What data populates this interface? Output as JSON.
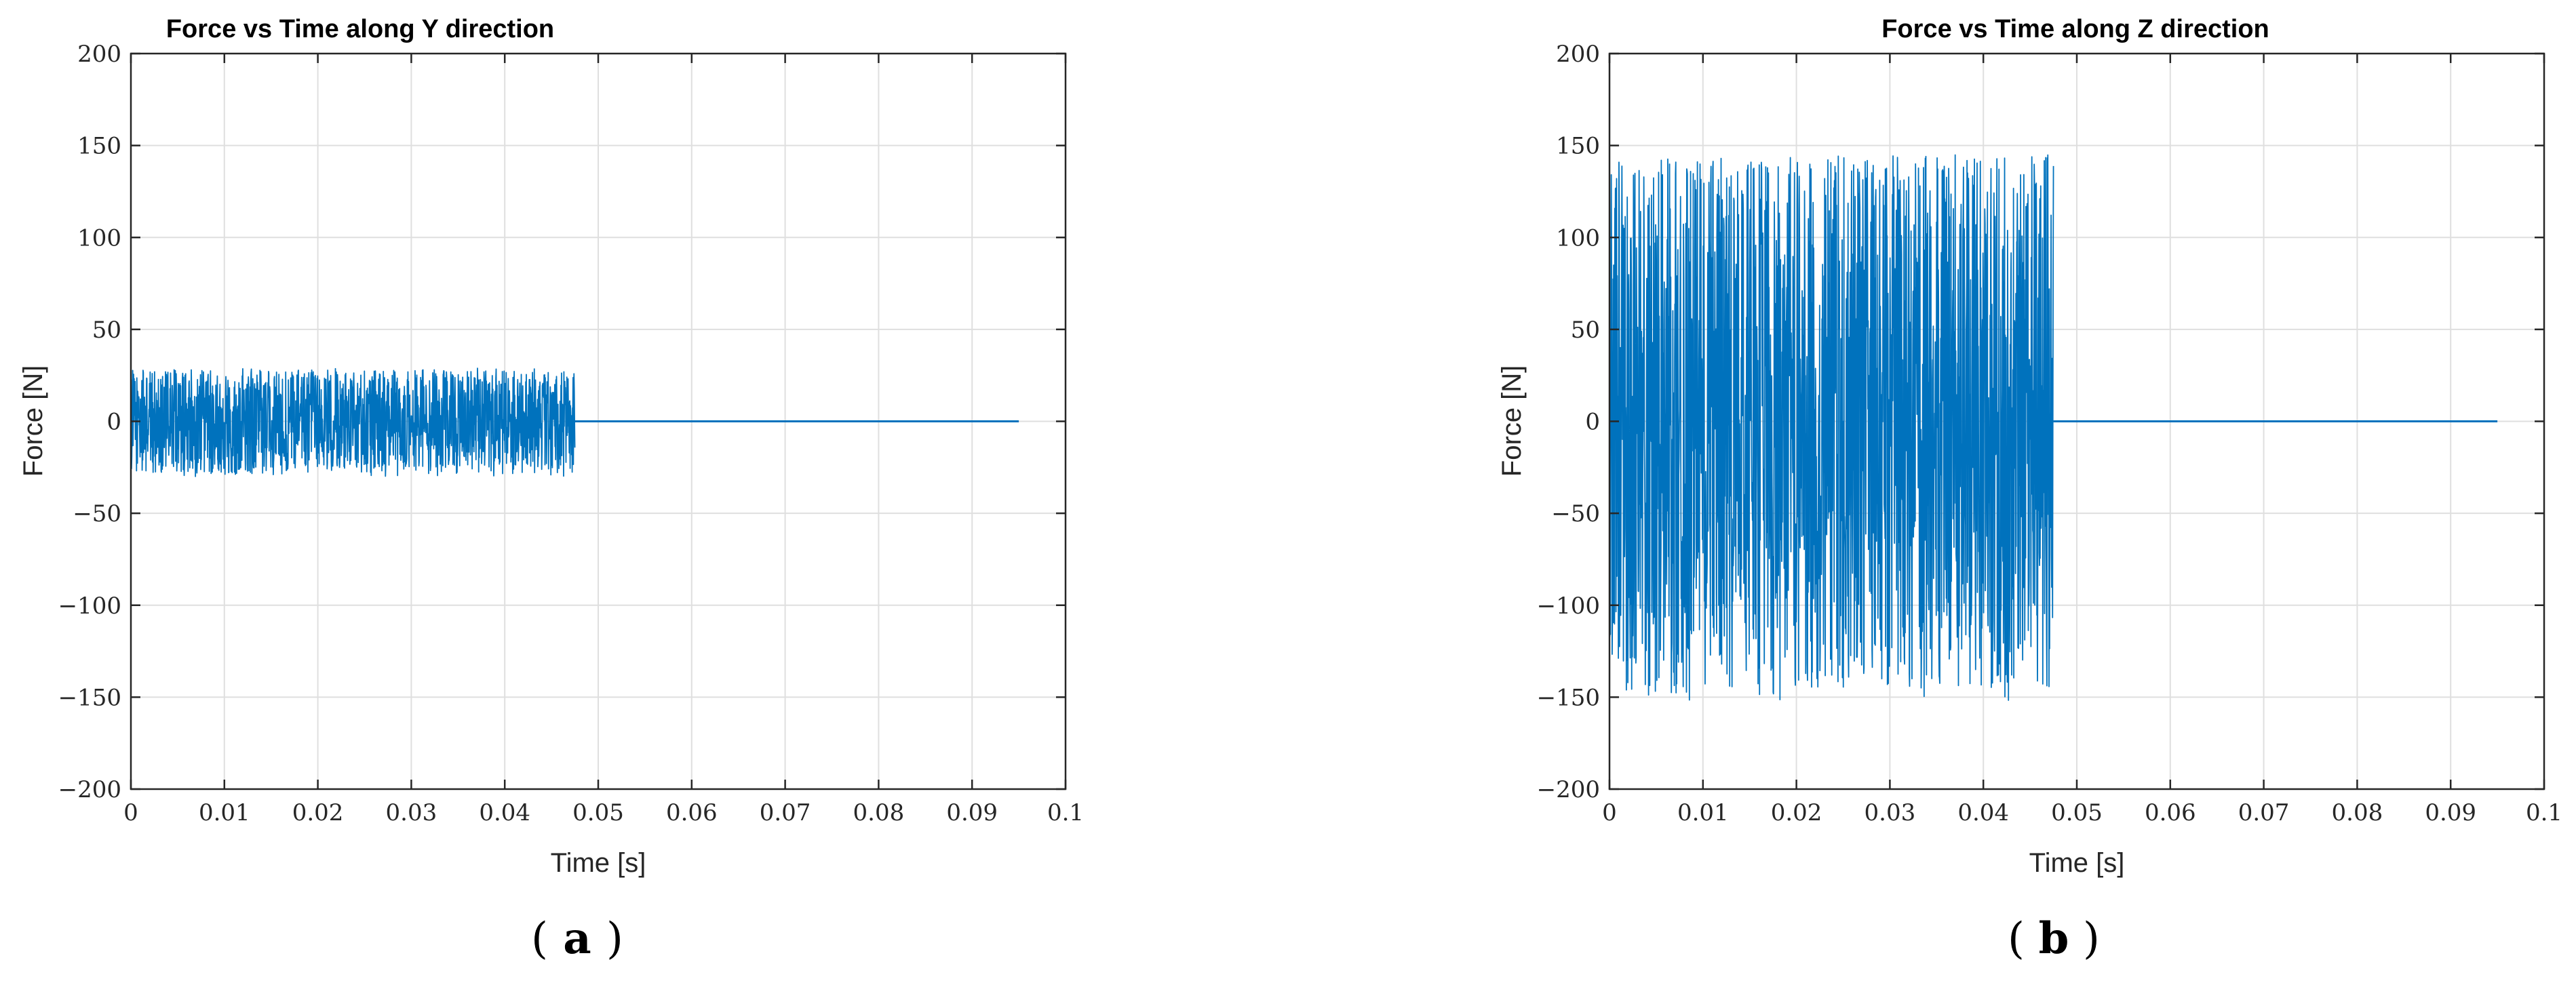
{
  "chart_data": [
    {
      "type": "line",
      "title": "Force vs Time along Y direction",
      "xlabel": "Time [s]",
      "ylabel": "Force [N]",
      "xlim": [
        0,
        0.1
      ],
      "ylim": [
        -200,
        200
      ],
      "xticks": [
        "0",
        "0.01",
        "0.02",
        "0.03",
        "0.04",
        "0.05",
        "0.06",
        "0.07",
        "0.08",
        "0.09",
        "0.1"
      ],
      "yticks": [
        "200",
        "150",
        "100",
        "50",
        "0",
        "−50",
        "−100",
        "−150",
        "−200"
      ],
      "grid": true,
      "caption": "a",
      "color": "#0072BD",
      "series": [
        {
          "active_interval": [
            0,
            0.0475
          ],
          "amplitude": 28,
          "envelope_min": -30,
          "envelope_max": 29,
          "steady_value": 0,
          "steady_interval": [
            0.0475,
            0.095
          ]
        }
      ]
    },
    {
      "type": "line",
      "title": "Force vs Time along Z direction",
      "xlabel": "Time [s]",
      "ylabel": "Force [N]",
      "xlim": [
        0,
        0.1
      ],
      "ylim": [
        -200,
        200
      ],
      "xticks": [
        "0",
        "0.01",
        "0.02",
        "0.03",
        "0.04",
        "0.05",
        "0.06",
        "0.07",
        "0.08",
        "0.09",
        "0.1"
      ],
      "yticks": [
        "200",
        "150",
        "100",
        "50",
        "0",
        "−50",
        "−100",
        "−150",
        "−200"
      ],
      "grid": true,
      "caption": "b",
      "color": "#0072BD",
      "series": [
        {
          "active_interval": [
            0,
            0.0475
          ],
          "amplitude": 145,
          "envelope_min": -152,
          "envelope_max": 146,
          "steady_value": 0,
          "steady_interval": [
            0.0475,
            0.095
          ]
        }
      ]
    }
  ]
}
